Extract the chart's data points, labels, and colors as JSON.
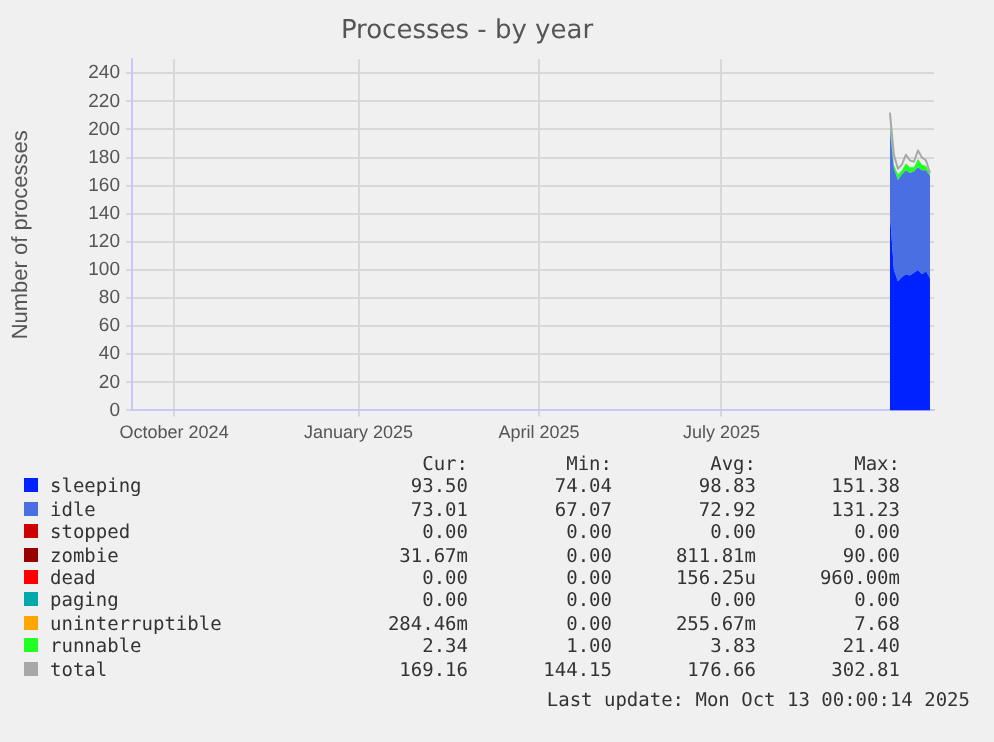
{
  "chart_data": {
    "type": "area",
    "title": "Processes - by year",
    "ylabel": "Number of processes",
    "stacked": true,
    "grid": true,
    "legend": "bottom",
    "xlim": [
      "2024-09-10",
      "2025-10-15"
    ],
    "xticks": [
      {
        "value": "2024-10-01",
        "label": "October 2024"
      },
      {
        "value": "2025-01-01",
        "label": "January 2025"
      },
      {
        "value": "2025-04-01",
        "label": "April 2025"
      },
      {
        "value": "2025-07-01",
        "label": "July 2025"
      }
    ],
    "ylim": [
      0,
      250
    ],
    "yticks": [
      0,
      20,
      40,
      60,
      80,
      100,
      120,
      140,
      160,
      180,
      200,
      220,
      240
    ],
    "x": [
      "2025-09-23",
      "2025-09-25",
      "2025-09-27",
      "2025-09-29",
      "2025-10-01",
      "2025-10-03",
      "2025-10-05",
      "2025-10-07",
      "2025-10-09",
      "2025-10-11",
      "2025-10-13"
    ],
    "series": [
      {
        "name": "sleeping",
        "color": "#0022ff",
        "values": [
          140,
          100,
          92,
          95,
          97,
          96,
          98,
          100,
          97,
          99,
          94
        ]
      },
      {
        "name": "idle",
        "color": "#4a6fe3",
        "values": [
          60,
          72,
          72,
          73,
          74,
          73,
          72,
          73,
          74,
          72,
          73
        ]
      },
      {
        "name": "stopped",
        "color": "#cc0000",
        "values": [
          null,
          null,
          null,
          null,
          null,
          null,
          null,
          null,
          null,
          null,
          null
        ]
      },
      {
        "name": "zombie",
        "color": "#990000",
        "values": [
          null,
          null,
          null,
          null,
          null,
          null,
          null,
          null,
          null,
          null,
          null
        ]
      },
      {
        "name": "dead",
        "color": "#ff0000",
        "values": [
          null,
          null,
          null,
          null,
          null,
          null,
          null,
          null,
          null,
          null,
          null
        ]
      },
      {
        "name": "paging",
        "color": "#00aaaa",
        "values": [
          null,
          null,
          null,
          null,
          null,
          null,
          null,
          null,
          null,
          null,
          null
        ]
      },
      {
        "name": "uninterruptible",
        "color": "#ffa500",
        "values": [
          null,
          null,
          null,
          null,
          null,
          null,
          null,
          null,
          null,
          null,
          null
        ]
      },
      {
        "name": "runnable",
        "color": "#22ff22",
        "values": [
          5,
          3,
          4,
          3,
          5,
          4,
          3,
          6,
          4,
          3,
          2
        ]
      },
      {
        "name": "total",
        "type": "line",
        "color": "#a8a8a8",
        "values": [
          212,
          182,
          172,
          175,
          182,
          178,
          177,
          185,
          180,
          178,
          169
        ]
      }
    ],
    "annotations": [
      "Cur:",
      "Min:",
      "Avg:",
      "Max:",
      "93.50",
      "74.04",
      "98.83",
      "151.38",
      "73.01",
      "67.07",
      "72.92",
      "131.23",
      "0.00",
      "0.00",
      "0.00",
      "0.00",
      "31.67m",
      "0.00",
      "811.81m",
      "90.00",
      "0.00",
      "0.00",
      "156.25u",
      "960.00m",
      "0.00",
      "0.00",
      "0.00",
      "0.00",
      "284.46m",
      "0.00",
      "255.67m",
      "7.68",
      "2.34",
      "1.00",
      "3.83",
      "21.40",
      "169.16",
      "144.15",
      "176.66",
      "302.81",
      "Last update: Mon Oct 13 00:00:14 2025"
    ]
  }
}
